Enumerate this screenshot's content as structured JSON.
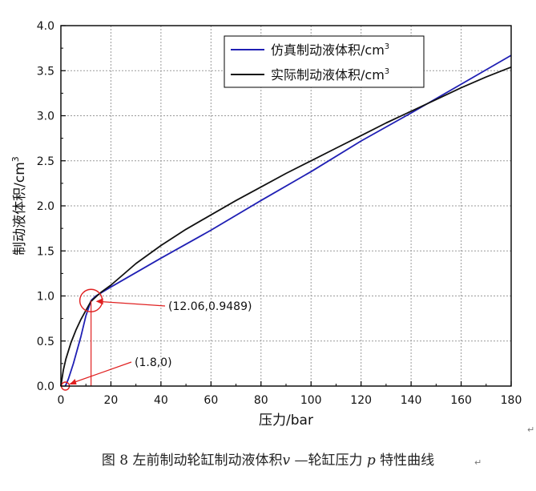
{
  "chart_data": {
    "type": "line",
    "xlabel": "压力/bar",
    "ylabel": "制动液体积/cm",
    "ylabel_sup": "3",
    "xlim": [
      0,
      180
    ],
    "ylim": [
      0.0,
      4.0
    ],
    "x_ticks": [
      "0",
      "20",
      "40",
      "60",
      "80",
      "100",
      "120",
      "140",
      "160",
      "180"
    ],
    "y_ticks": [
      "0.0",
      "0.5",
      "1.0",
      "1.5",
      "2.0",
      "2.5",
      "3.0",
      "3.5",
      "4.0"
    ],
    "grid": true,
    "legend_position": "top-right",
    "series": [
      {
        "name": "仿真制动液体积/cm",
        "name_sup": "3",
        "color": "#1f1fb4",
        "x": [
          1.8,
          3,
          5,
          8,
          10,
          12.06,
          14,
          20,
          40,
          60,
          80,
          100,
          120,
          140,
          160,
          180
        ],
        "y": [
          0.0,
          0.08,
          0.25,
          0.55,
          0.78,
          0.9489,
          1.0,
          1.1,
          1.42,
          1.73,
          2.06,
          2.38,
          2.72,
          3.03,
          3.35,
          3.67
        ]
      },
      {
        "name": "实际制动液体积/cm",
        "name_sup": "3",
        "color": "#111111",
        "x": [
          0,
          1,
          2,
          4,
          6,
          8,
          10,
          12,
          14,
          16,
          20,
          25,
          30,
          40,
          50,
          60,
          70,
          80,
          90,
          100,
          110,
          120,
          130,
          140,
          150,
          160,
          170,
          180
        ],
        "y": [
          0.0,
          0.18,
          0.3,
          0.48,
          0.62,
          0.74,
          0.84,
          0.94,
          0.99,
          1.04,
          1.12,
          1.24,
          1.36,
          1.56,
          1.74,
          1.9,
          2.06,
          2.21,
          2.36,
          2.5,
          2.64,
          2.78,
          2.92,
          3.05,
          3.18,
          3.31,
          3.43,
          3.54
        ]
      }
    ],
    "annotations": [
      {
        "label": "(12.06,0.9489)",
        "x": 12.06,
        "y": 0.9489
      },
      {
        "label": "(1.8,0)",
        "x": 1.8,
        "y": 0.0
      }
    ]
  },
  "caption": {
    "prefix": "图 8",
    "text_before": " 左前制动轮缸制动液体积",
    "var1": "v",
    "text_mid": " —轮缸压力 ",
    "var2": "p",
    "text_after": " 特性曲线"
  }
}
